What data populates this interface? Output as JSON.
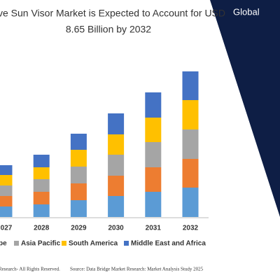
{
  "chart_data": {
    "type": "stacked-bar",
    "title_lines": [
      "ve Sun Visor Market is Expected to Account for USD",
      "8.65 Billion by 2032"
    ],
    "banner": "Global",
    "categories": [
      "027",
      "2028",
      "2029",
      "2030",
      "2031",
      "2032"
    ],
    "series": [
      {
        "name": null,
        "color": "#5b9bd5",
        "values": [
          15,
          18,
          24,
          30,
          36,
          42
        ]
      },
      {
        "name": "pe",
        "color": "#ed7d31",
        "values": [
          15,
          18,
          24,
          29,
          35,
          41
        ]
      },
      {
        "name": "Asia Pacific",
        "color": "#a5a5a5",
        "values": [
          15,
          18,
          24,
          30,
          36,
          42
        ]
      },
      {
        "name": "South America",
        "color": "#ffc000",
        "values": [
          15,
          17,
          24,
          29,
          35,
          42
        ]
      },
      {
        "name": "Middle East and Africa",
        "color": "#4472c4",
        "values": [
          14,
          18,
          23,
          30,
          36,
          41
        ]
      }
    ],
    "ylim": [
      0,
      220
    ],
    "footer": [
      "Research- All Rights Reserved.",
      "Source: Data Bridge Market Research: Market Analysis Study 2025"
    ]
  }
}
